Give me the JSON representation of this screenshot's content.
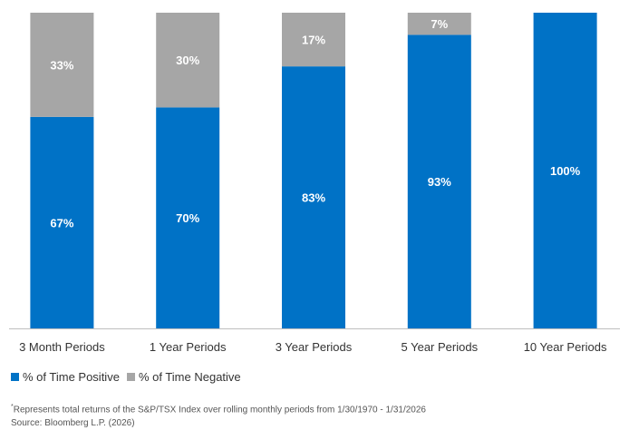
{
  "chart_data": {
    "type": "bar",
    "stacked": true,
    "categories": [
      "3 Month Periods",
      "1 Year Periods",
      "3 Year Periods",
      "5 Year Periods",
      "10 Year Periods"
    ],
    "series": [
      {
        "name": "% of Time Positive",
        "values": [
          67,
          70,
          83,
          93,
          100
        ],
        "labels": [
          "67%",
          "70%",
          "83%",
          "93%",
          "100%"
        ],
        "color": "#0072c6"
      },
      {
        "name": "% of Time Negative",
        "values": [
          33,
          30,
          17,
          7,
          0
        ],
        "labels": [
          "33%",
          "30%",
          "17%",
          "7%",
          ""
        ],
        "color": "#a6a6a6"
      }
    ],
    "ylim": [
      0,
      100
    ],
    "grid": false,
    "legend_position": "bottom-left"
  },
  "footnote": {
    "marker": "*",
    "text": "Represents total returns of the S&P/TSX Index over rolling monthly periods from 1/30/1970 - 1/31/2026",
    "source": "Source: Bloomberg L.P. (2026)"
  }
}
